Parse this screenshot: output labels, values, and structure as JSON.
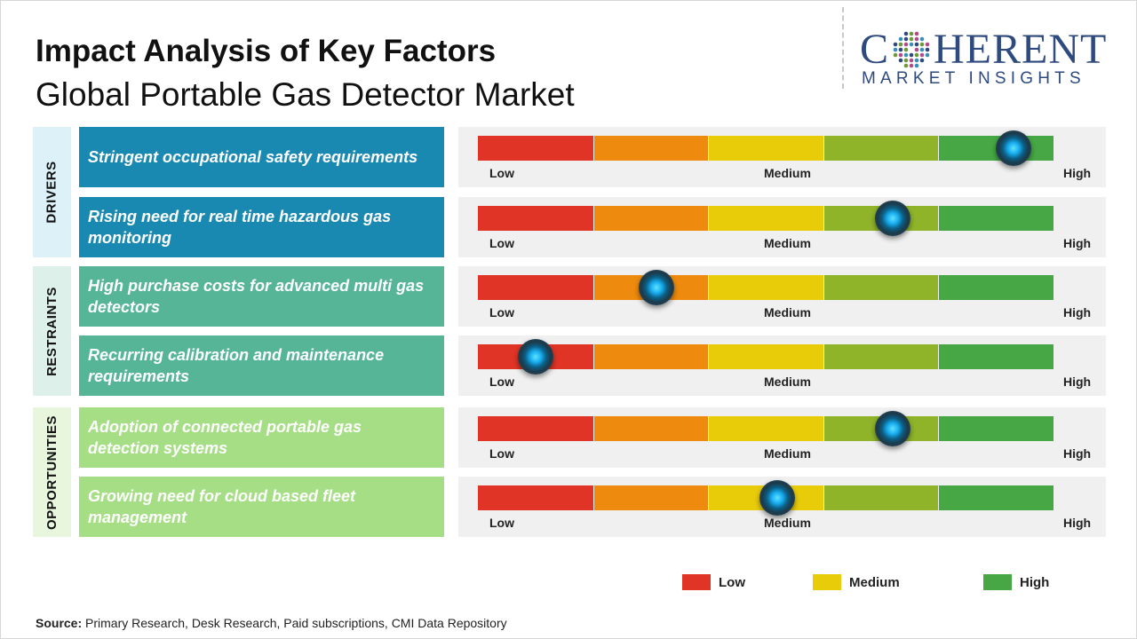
{
  "header": {
    "title": "Impact Analysis of Key Factors",
    "subtitle": "Global Portable Gas Detector Market"
  },
  "logo": {
    "line1_pre": "C",
    "line1_post": "HERENT",
    "line2": "MARKET INSIGHTS",
    "color": "#2e4a7e"
  },
  "chart_data": {
    "type": "table",
    "title": "Impact Analysis of Key Factors",
    "subtitle": "Global Portable Gas Detector Market",
    "scale_labels": {
      "low": "Low",
      "medium": "Medium",
      "high": "High"
    },
    "segment_colors": [
      "#e03426",
      "#ee8a0d",
      "#e8cc0a",
      "#8fb42a",
      "#46a744"
    ],
    "categories": [
      {
        "name": "DRIVERS",
        "bg": "#ddf1f9",
        "factor_color": "#1a89b1"
      },
      {
        "name": "RESTRAINTS",
        "bg": "#ddf1ea",
        "factor_color": "#55b596"
      },
      {
        "name": "OPPORTUNITIES",
        "bg": "#e8f6de",
        "factor_color": "#a6de86"
      }
    ],
    "factors": [
      {
        "category": "DRIVERS",
        "label": "Stringent occupational safety requirements",
        "impact": 0.93
      },
      {
        "category": "DRIVERS",
        "label": "Rising need for real time hazardous gas monitoring",
        "impact": 0.72
      },
      {
        "category": "RESTRAINTS",
        "label": "High purchase costs for advanced multi gas detectors",
        "impact": 0.31
      },
      {
        "category": "RESTRAINTS",
        "label": "Recurring calibration and maintenance requirements",
        "impact": 0.1
      },
      {
        "category": "OPPORTUNITIES",
        "label": "Adoption of connected portable gas detection systems",
        "impact": 0.72
      },
      {
        "category": "OPPORTUNITIES",
        "label": "Growing need for cloud based fleet management",
        "impact": 0.52
      }
    ],
    "legend": [
      {
        "label": "Low",
        "color": "#e03426"
      },
      {
        "label": "Medium",
        "color": "#e8cc0a"
      },
      {
        "label": "High",
        "color": "#46a744"
      }
    ]
  },
  "source": {
    "prefix": "Source:",
    "text": " Primary Research, Desk Research, Paid subscriptions, CMI Data Repository"
  }
}
